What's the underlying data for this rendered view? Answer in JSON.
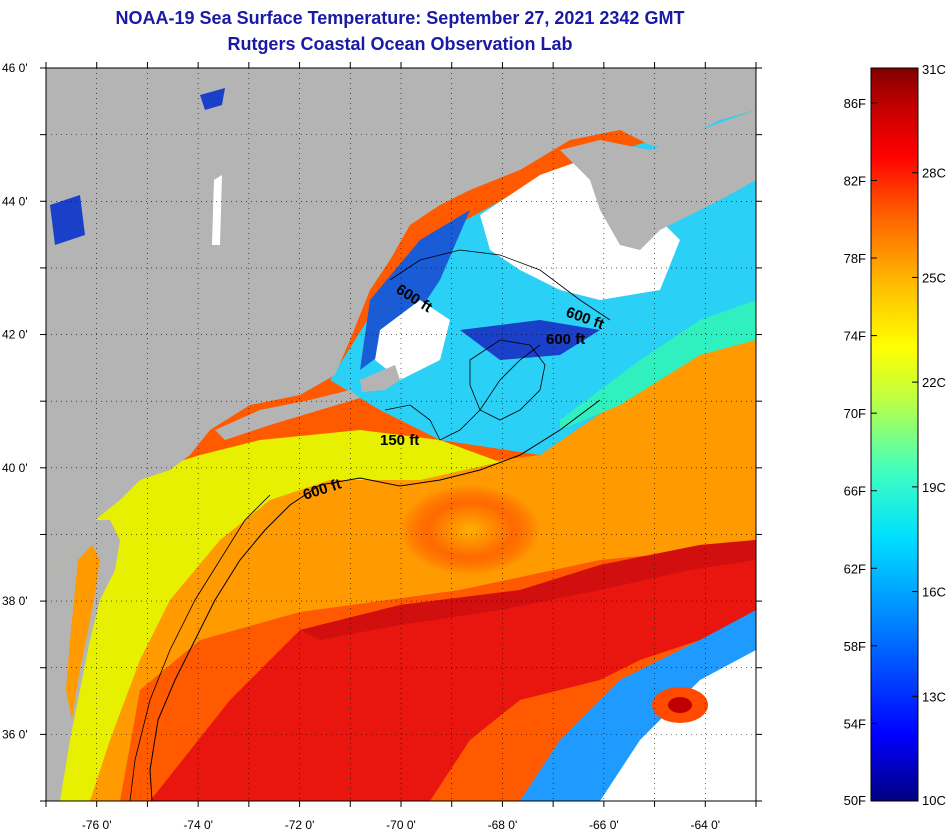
{
  "title": {
    "line1": "NOAA-19 Sea Surface Temperature:  September 27, 2021 2342 GMT",
    "line2": "Rutgers Coastal Ocean Observation Lab"
  },
  "map": {
    "lat_labels": [
      "46 0'",
      "44 0'",
      "42 0'",
      "40 0'",
      "38 0'",
      "36 0'"
    ],
    "lat_values": [
      46,
      44,
      42,
      40,
      38,
      36
    ],
    "lon_labels": [
      "-76 0'",
      "-74 0'",
      "-72 0'",
      "-70 0'",
      "-68 0'",
      "-66 0'",
      "-64 0'"
    ],
    "lon_values": [
      -76,
      -74,
      -72,
      -70,
      -68,
      -66,
      -64
    ],
    "lat_range": [
      35,
      46
    ],
    "lon_range": [
      -77,
      -63
    ],
    "land_color": "#b4b4b4",
    "cloud_color": "#ffffff",
    "contour_labels": [
      {
        "text": "600 ft",
        "key": "gulf-of-maine-west"
      },
      {
        "text": "600 ft",
        "key": "georges-north"
      },
      {
        "text": "600 ft",
        "key": "georges-south"
      },
      {
        "text": "150 ft",
        "key": "nantucket-shoals"
      },
      {
        "text": "600 ft",
        "key": "shelf-break"
      }
    ]
  },
  "colorbar": {
    "fahrenheit_labels": [
      "86F",
      "82F",
      "78F",
      "74F",
      "70F",
      "66F",
      "62F",
      "58F",
      "54F",
      "50F"
    ],
    "fahrenheit_values": [
      86,
      82,
      78,
      74,
      70,
      66,
      62,
      58,
      54,
      50
    ],
    "celsius_labels": [
      "31C",
      "28C",
      "25C",
      "22C",
      "19C",
      "16C",
      "13C",
      "10C"
    ],
    "celsius_values": [
      31,
      28,
      25,
      22,
      19,
      16,
      13,
      10
    ],
    "range_celsius": [
      10,
      31
    ],
    "colors": [
      "#000080",
      "#0000ff",
      "#0080ff",
      "#00e0ff",
      "#40ffc0",
      "#c0ff40",
      "#ffff00",
      "#ffc000",
      "#ff6000",
      "#ff0000",
      "#c00000",
      "#800000"
    ]
  }
}
